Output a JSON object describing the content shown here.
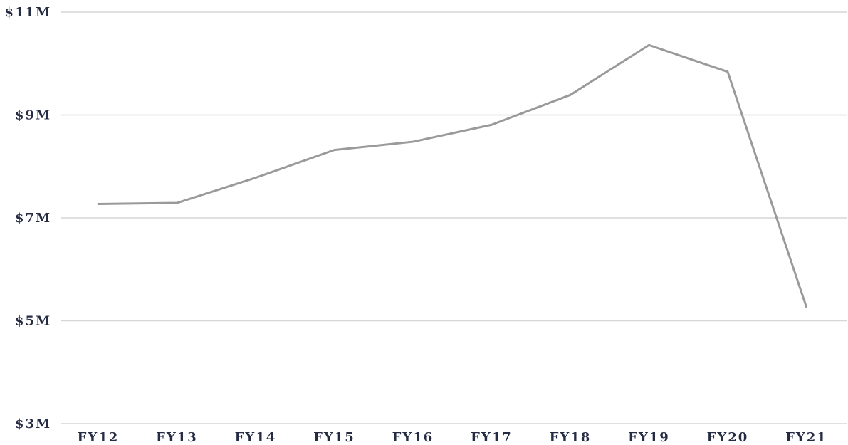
{
  "chart_data": {
    "type": "line",
    "title": "",
    "xlabel": "",
    "ylabel": "",
    "categories": [
      "FY12",
      "FY13",
      "FY14",
      "FY15",
      "FY16",
      "FY17",
      "FY18",
      "FY19",
      "FY20",
      "FY21"
    ],
    "series": [
      {
        "values": [
          7.27,
          7.29,
          7.78,
          8.32,
          8.48,
          8.81,
          9.39,
          10.36,
          9.84,
          5.27
        ]
      }
    ],
    "ylim": [
      3,
      11
    ],
    "yticks": [
      3,
      5,
      7,
      9,
      11
    ],
    "ytick_labels": [
      "$3M",
      "$5M",
      "$7M",
      "$9M",
      "$11M"
    ],
    "grid": true,
    "legend": "none",
    "colors": {
      "line": "#9a9a9a",
      "grid": "#d6d6d6",
      "text": "#262b44"
    }
  }
}
